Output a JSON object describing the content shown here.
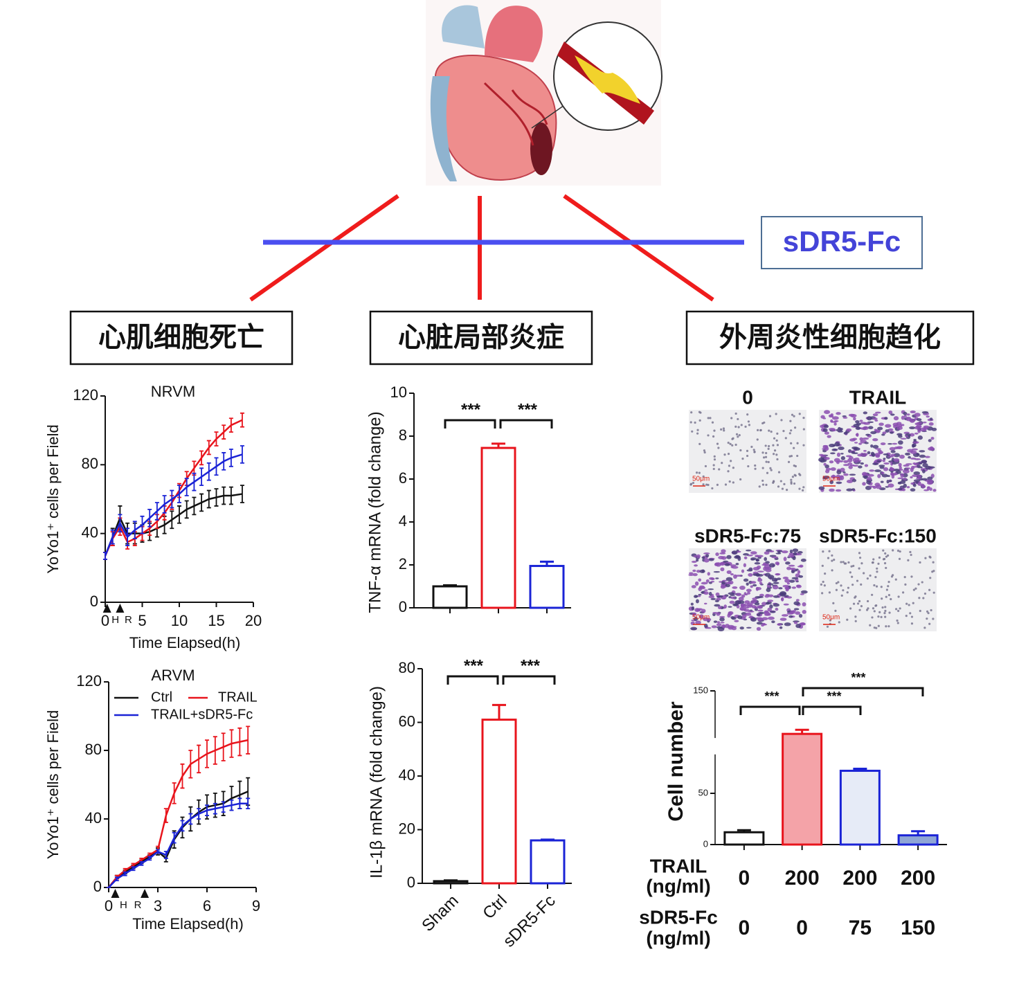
{
  "heart_figure": {
    "inhibitor_label": "sDR5-Fc"
  },
  "headers": [
    "心肌细胞死亡",
    "心脏局部炎症",
    "外周炎性细胞趋化"
  ],
  "micrographs": {
    "panels": [
      "0",
      "TRAIL",
      "sDR5-Fc:75",
      "sDR5-Fc:150"
    ],
    "scale_label": "50μm"
  },
  "chart_data": [
    {
      "type": "line",
      "title": "NRVM",
      "xlabel": "Time Elapsed(h)",
      "ylabel": "YoYo1⁺ cells per Field",
      "xlim": [
        0,
        20
      ],
      "ylim": [
        0,
        120
      ],
      "xticks": [
        0,
        5,
        10,
        15,
        20
      ],
      "yticks": [
        0,
        40,
        80,
        120
      ],
      "legend": false,
      "x": [
        0,
        1,
        2,
        3,
        4,
        5,
        6,
        7,
        8,
        9,
        10,
        11,
        12,
        13,
        14,
        15,
        16,
        17,
        18.5
      ],
      "series": [
        {
          "color": "#111111",
          "values": [
            27,
            38,
            49,
            40,
            40,
            40,
            41,
            43,
            45,
            48,
            51,
            54,
            56,
            58,
            60,
            61,
            62,
            62,
            63
          ],
          "errors": [
            2,
            5,
            7,
            6,
            6,
            5,
            5,
            5,
            5,
            5,
            5,
            5,
            5,
            5,
            5,
            5,
            5,
            5,
            5
          ]
        },
        {
          "color": "#e8141c",
          "values": [
            27,
            37,
            44,
            35,
            37,
            40,
            43,
            47,
            52,
            58,
            65,
            72,
            78,
            84,
            90,
            95,
            99,
            103,
            106
          ],
          "errors": [
            2,
            4,
            5,
            4,
            4,
            4,
            4,
            4,
            4,
            4,
            4,
            4,
            4,
            4,
            4,
            4,
            4,
            4,
            4
          ]
        },
        {
          "color": "#1a23d6",
          "values": [
            27,
            38,
            46,
            38,
            42,
            45,
            49,
            53,
            57,
            60,
            63,
            67,
            70,
            73,
            76,
            79,
            82,
            84,
            86
          ],
          "errors": [
            2,
            4,
            5,
            5,
            5,
            5,
            5,
            5,
            5,
            5,
            5,
            5,
            5,
            5,
            5,
            5,
            5,
            5,
            5
          ]
        }
      ],
      "markers": [
        {
          "label": "H",
          "x": 0.25
        },
        {
          "label": "R",
          "x": 2
        }
      ]
    },
    {
      "type": "line",
      "title": "ARVM",
      "xlabel": "Time Elapsed(h)",
      "ylabel": "YoYo1⁺ cells per Field",
      "xlim": [
        0,
        9
      ],
      "ylim": [
        0,
        120
      ],
      "xticks": [
        0,
        3,
        6,
        9
      ],
      "yticks": [
        0,
        40,
        80,
        120
      ],
      "legend": "upper left",
      "x": [
        0,
        0.5,
        1,
        1.5,
        2,
        2.5,
        3,
        3.5,
        4,
        4.5,
        5,
        5.5,
        6,
        6.5,
        7,
        7.5,
        8,
        8.5
      ],
      "series": [
        {
          "name": "Ctrl",
          "color": "#111111",
          "values": [
            0,
            6,
            9,
            12,
            15,
            18,
            21,
            17,
            28,
            35,
            40,
            44,
            47,
            48,
            49,
            52,
            54,
            56
          ],
          "errors": [
            0,
            1,
            1,
            1,
            1,
            1,
            2,
            2,
            5,
            6,
            7,
            7,
            7,
            7,
            7,
            7,
            8,
            8
          ]
        },
        {
          "name": "TRAIL",
          "color": "#e8141c",
          "values": [
            0,
            6,
            10,
            13,
            16,
            19,
            22,
            42,
            55,
            65,
            72,
            75,
            78,
            80,
            82,
            84,
            85,
            86
          ],
          "errors": [
            0,
            1,
            1,
            1,
            1,
            1,
            2,
            4,
            6,
            7,
            8,
            8,
            8,
            8,
            8,
            8,
            8,
            8
          ]
        },
        {
          "name": "TRAIL+sDR5-Fc",
          "color": "#1a23d6",
          "values": [
            0,
            5,
            8,
            11,
            14,
            17,
            21,
            19,
            29,
            36,
            40,
            43,
            45,
            46,
            47,
            48,
            49,
            49
          ],
          "errors": [
            0,
            1,
            1,
            1,
            1,
            1,
            1,
            2,
            3,
            3,
            3,
            3,
            3,
            3,
            3,
            3,
            3,
            3
          ]
        }
      ],
      "markers": [
        {
          "label": "H",
          "x": 0.4
        },
        {
          "label": "R",
          "x": 2.2
        }
      ]
    },
    {
      "type": "bar",
      "ylabel": "TNF-α mRNA (fold change)",
      "ylim": [
        0,
        10
      ],
      "yticks": [
        0,
        2,
        4,
        6,
        8,
        10
      ],
      "categories": [
        null,
        null,
        null
      ],
      "values": [
        1.0,
        7.45,
        1.95
      ],
      "errors": [
        0.05,
        0.2,
        0.2
      ],
      "colors": [
        "#111111",
        "#e8141c",
        "#1a23d6"
      ],
      "fills": [
        "#ffffff",
        "#ffffff",
        "#ffffff"
      ],
      "annotations": [
        "***",
        "***"
      ]
    },
    {
      "type": "bar",
      "ylabel": "IL-1β mRNA (fold change)",
      "ylim": [
        0,
        80
      ],
      "yticks": [
        0,
        20,
        40,
        60,
        80
      ],
      "categories": [
        "Sham",
        "Ctrl",
        "sDR5-Fc"
      ],
      "values": [
        0.8,
        61,
        16
      ],
      "errors": [
        0.3,
        5.5,
        0.3
      ],
      "colors": [
        "#111111",
        "#e8141c",
        "#1a23d6"
      ],
      "fills": [
        "#ffffff",
        "#ffffff",
        "#ffffff"
      ],
      "annotations": [
        "***",
        "***"
      ]
    },
    {
      "type": "bar",
      "ylabel": "Cell number",
      "ylim": [
        0,
        150
      ],
      "yticks": [
        0,
        50,
        150
      ],
      "categories": [
        null,
        null,
        null,
        null
      ],
      "values": [
        12,
        108,
        72,
        9
      ],
      "errors": [
        2,
        4,
        2,
        4
      ],
      "colors": [
        "#111111",
        "#e8141c",
        "#1a23d6",
        "#1a23d6"
      ],
      "fills": [
        "#ffffff",
        "#f4a3a8",
        "#e6ebf7",
        "#8fa6d6"
      ],
      "annotations": [
        "***",
        "***",
        "***"
      ],
      "condition_rows": [
        {
          "label": [
            "TRAIL",
            "(ng/ml)"
          ],
          "values": [
            0,
            200,
            200,
            200
          ]
        },
        {
          "label": [
            "sDR5-Fc",
            "(ng/ml)"
          ],
          "values": [
            0,
            0,
            75,
            150
          ]
        }
      ]
    }
  ]
}
